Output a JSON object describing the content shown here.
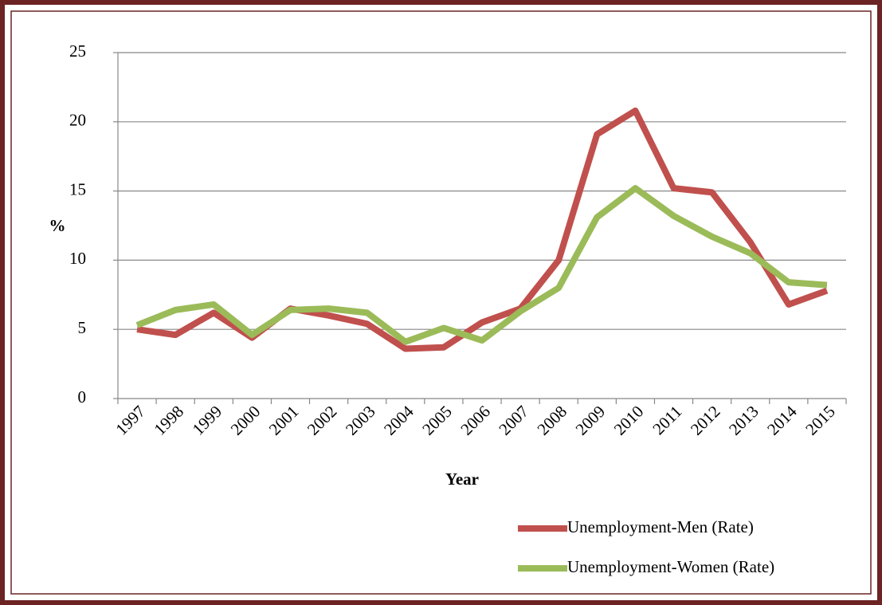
{
  "chart_data": {
    "type": "line",
    "xlabel": "Year",
    "ylabel": "%",
    "categories": [
      "1997",
      "1998",
      "1999",
      "2000",
      "2001",
      "2002",
      "2003",
      "2004",
      "2005",
      "2006",
      "2007",
      "2008",
      "2009",
      "2010",
      "2011",
      "2012",
      "2013",
      "2014",
      "2015"
    ],
    "series": [
      {
        "name": "Unemployment-Men (Rate)",
        "color": "#c0504d",
        "values": [
          5.0,
          4.6,
          6.2,
          4.4,
          6.5,
          6.0,
          5.4,
          3.6,
          3.7,
          5.5,
          6.5,
          10.0,
          19.1,
          20.8,
          15.2,
          14.9,
          11.3,
          6.8,
          7.8
        ]
      },
      {
        "name": "Unemployment-Women (Rate)",
        "color": "#9bbb59",
        "values": [
          5.3,
          6.4,
          6.8,
          4.6,
          6.4,
          6.5,
          6.2,
          4.1,
          5.1,
          4.2,
          6.3,
          8.0,
          13.1,
          15.2,
          13.2,
          11.7,
          10.5,
          8.4,
          8.2
        ]
      }
    ],
    "ylim": [
      0,
      25
    ],
    "yticks": [
      0,
      5,
      10,
      15,
      20,
      25
    ],
    "grid": true,
    "legend": "bottom-right"
  }
}
